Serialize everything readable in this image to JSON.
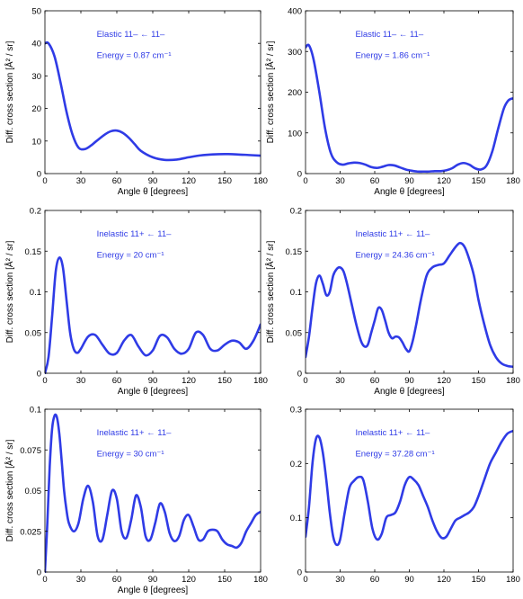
{
  "colors": {
    "line": "#2f3be6",
    "text": "#000000",
    "annotation": "#2f3be6"
  },
  "chart_data": [
    {
      "type": "line",
      "xlabel": "Angle θ [degrees]",
      "ylabel": "Diff. cross section [Å² / sr]",
      "xlim": [
        0,
        180
      ],
      "ylim": [
        0,
        50
      ],
      "xticks": [
        0,
        30,
        60,
        90,
        120,
        150,
        180
      ],
      "yticks": [
        {
          "v": 0,
          "t": "0"
        },
        {
          "v": 10,
          "t": "10"
        },
        {
          "v": 20,
          "t": "20"
        },
        {
          "v": 30,
          "t": "30"
        },
        {
          "v": 40,
          "t": "40"
        },
        {
          "v": 50,
          "t": "50"
        }
      ],
      "annotation_line1": "Elastic 11– ← 11–",
      "annotation_line2": "Energy = 0.87 cm⁻¹",
      "series": [
        {
          "x": [
            0,
            3,
            8,
            13,
            18,
            23,
            28,
            33,
            38,
            43,
            50,
            55,
            60,
            65,
            70,
            75,
            80,
            90,
            100,
            110,
            120,
            130,
            140,
            150,
            160,
            170,
            180
          ],
          "y": [
            40,
            40,
            36,
            28,
            19,
            12,
            8,
            7.5,
            8.5,
            10,
            12,
            13,
            13.2,
            12.5,
            11,
            9,
            7,
            5,
            4.2,
            4.3,
            5,
            5.6,
            5.9,
            6,
            5.9,
            5.7,
            5.5
          ]
        }
      ]
    },
    {
      "type": "line",
      "xlabel": "Angle θ [degrees]",
      "ylabel": "Diff. cross section [Å² / sr]",
      "xlim": [
        0,
        180
      ],
      "ylim": [
        0,
        400
      ],
      "xticks": [
        0,
        30,
        60,
        90,
        120,
        150,
        180
      ],
      "yticks": [
        {
          "v": 0,
          "t": "0"
        },
        {
          "v": 100,
          "t": "100"
        },
        {
          "v": 200,
          "t": "200"
        },
        {
          "v": 300,
          "t": "300"
        },
        {
          "v": 400,
          "t": "400"
        }
      ],
      "annotation_line1": "Elastic 11– ← 11–",
      "annotation_line2": "Energy = 1.86 cm⁻¹",
      "series": [
        {
          "x": [
            0,
            3,
            7,
            12,
            17,
            22,
            27,
            32,
            37,
            42,
            47,
            52,
            57,
            62,
            67,
            72,
            77,
            82,
            87,
            92,
            97,
            102,
            107,
            112,
            117,
            122,
            127,
            132,
            137,
            142,
            147,
            152,
            157,
            162,
            167,
            172,
            176,
            180
          ],
          "y": [
            310,
            315,
            280,
            200,
            110,
            50,
            28,
            22,
            25,
            27,
            26,
            22,
            16,
            14,
            17,
            21,
            20,
            15,
            10,
            7,
            5,
            5,
            5,
            6,
            6,
            8,
            13,
            22,
            26,
            22,
            13,
            10,
            20,
            55,
            110,
            160,
            180,
            185
          ]
        }
      ]
    },
    {
      "type": "line",
      "xlabel": "Angle θ [degrees]",
      "ylabel": "Diff. cross section [Å² / sr]",
      "xlim": [
        0,
        180
      ],
      "ylim": [
        0,
        0.2
      ],
      "xticks": [
        0,
        30,
        60,
        90,
        120,
        150,
        180
      ],
      "yticks": [
        {
          "v": 0,
          "t": "0"
        },
        {
          "v": 0.05,
          "t": "0.05"
        },
        {
          "v": 0.1,
          "t": "0.1"
        },
        {
          "v": 0.15,
          "t": "0.15"
        },
        {
          "v": 0.2,
          "t": "0.2"
        }
      ],
      "annotation_line1": "Inelastic 11+ ← 11–",
      "annotation_line2": "Energy = 20 cm⁻¹",
      "series": [
        {
          "x": [
            0,
            3,
            6,
            9,
            12,
            15,
            18,
            21,
            24,
            27,
            30,
            36,
            42,
            48,
            54,
            60,
            66,
            72,
            78,
            84,
            90,
            96,
            102,
            108,
            114,
            120,
            126,
            132,
            138,
            144,
            150,
            156,
            162,
            168,
            174,
            180
          ],
          "y": [
            0,
            0.02,
            0.07,
            0.125,
            0.142,
            0.13,
            0.09,
            0.05,
            0.03,
            0.025,
            0.03,
            0.045,
            0.047,
            0.035,
            0.024,
            0.025,
            0.04,
            0.047,
            0.033,
            0.022,
            0.028,
            0.046,
            0.044,
            0.03,
            0.024,
            0.03,
            0.05,
            0.047,
            0.03,
            0.028,
            0.035,
            0.04,
            0.038,
            0.03,
            0.04,
            0.06
          ]
        }
      ]
    },
    {
      "type": "line",
      "xlabel": "Angle θ [degrees]",
      "ylabel": "Diff. cross section [Å² / sr]",
      "xlim": [
        0,
        180
      ],
      "ylim": [
        0,
        0.2
      ],
      "xticks": [
        0,
        30,
        60,
        90,
        120,
        150,
        180
      ],
      "yticks": [
        {
          "v": 0,
          "t": "0"
        },
        {
          "v": 0.05,
          "t": "0.05"
        },
        {
          "v": 0.1,
          "t": "0.1"
        },
        {
          "v": 0.15,
          "t": "0.15"
        },
        {
          "v": 0.2,
          "t": "0.2"
        }
      ],
      "annotation_line1": "Inelastic 11+ ← 11–",
      "annotation_line2": "Energy = 24.36 cm⁻¹",
      "series": [
        {
          "x": [
            0,
            3,
            6,
            9,
            12,
            15,
            18,
            21,
            24,
            27,
            30,
            33,
            36,
            40,
            44,
            48,
            51,
            54,
            57,
            60,
            63,
            66,
            69,
            72,
            75,
            78,
            81,
            84,
            87,
            90,
            93,
            96,
            100,
            105,
            110,
            115,
            120,
            125,
            130,
            134,
            138,
            142,
            146,
            150,
            155,
            160,
            165,
            170,
            175,
            180
          ],
          "y": [
            0.02,
            0.045,
            0.08,
            0.11,
            0.12,
            0.11,
            0.096,
            0.1,
            0.12,
            0.128,
            0.13,
            0.125,
            0.11,
            0.085,
            0.06,
            0.04,
            0.033,
            0.035,
            0.05,
            0.065,
            0.08,
            0.078,
            0.065,
            0.05,
            0.043,
            0.045,
            0.044,
            0.038,
            0.03,
            0.027,
            0.04,
            0.06,
            0.09,
            0.12,
            0.13,
            0.133,
            0.135,
            0.145,
            0.155,
            0.16,
            0.155,
            0.14,
            0.12,
            0.09,
            0.06,
            0.035,
            0.02,
            0.012,
            0.009,
            0.008
          ]
        }
      ]
    },
    {
      "type": "line",
      "xlabel": "Angle θ [degrees]",
      "ylabel": "Diff. cross section [Å² / sr]",
      "xlim": [
        0,
        180
      ],
      "ylim": [
        0,
        0.1
      ],
      "xticks": [
        0,
        30,
        60,
        90,
        120,
        150,
        180
      ],
      "yticks": [
        {
          "v": 0,
          "t": "0"
        },
        {
          "v": 0.025,
          "t": "0.025"
        },
        {
          "v": 0.05,
          "t": "0.05"
        },
        {
          "v": 0.075,
          "t": "0.075"
        },
        {
          "v": 0.1,
          "t": "0.1"
        }
      ],
      "annotation_line1": "Inelastic 11+ ← 11–",
      "annotation_line2": "Energy = 30 cm⁻¹",
      "series": [
        {
          "x": [
            0,
            2,
            4,
            6,
            8,
            10,
            12,
            14,
            16,
            18,
            20,
            24,
            28,
            32,
            36,
            40,
            44,
            48,
            52,
            56,
            60,
            64,
            68,
            72,
            76,
            80,
            84,
            88,
            92,
            96,
            100,
            104,
            108,
            112,
            116,
            120,
            124,
            128,
            132,
            136,
            140,
            144,
            148,
            152,
            156,
            160,
            164,
            168,
            172,
            176,
            180
          ],
          "y": [
            0,
            0.03,
            0.065,
            0.088,
            0.096,
            0.095,
            0.085,
            0.068,
            0.05,
            0.038,
            0.03,
            0.025,
            0.03,
            0.045,
            0.053,
            0.043,
            0.022,
            0.02,
            0.035,
            0.05,
            0.045,
            0.025,
            0.021,
            0.032,
            0.047,
            0.04,
            0.022,
            0.02,
            0.03,
            0.042,
            0.037,
            0.024,
            0.019,
            0.022,
            0.032,
            0.035,
            0.028,
            0.02,
            0.02,
            0.025,
            0.026,
            0.025,
            0.02,
            0.017,
            0.016,
            0.015,
            0.018,
            0.025,
            0.03,
            0.035,
            0.037
          ]
        }
      ]
    },
    {
      "type": "line",
      "xlabel": "",
      "ylabel": "",
      "xlim": [
        0,
        180
      ],
      "ylim": [
        0,
        0.3
      ],
      "xticks": [
        0,
        30,
        60,
        90,
        120,
        150,
        180
      ],
      "yticks": [
        {
          "v": 0,
          "t": "0"
        },
        {
          "v": 0.1,
          "t": "0.1"
        },
        {
          "v": 0.2,
          "t": "0.2"
        },
        {
          "v": 0.3,
          "t": "0.3"
        }
      ],
      "annotation_line1": "Inelastic 11+ ← 11–",
      "annotation_line2": "Energy = 37.28 cm⁻¹",
      "series": [
        {
          "x": [
            0,
            3,
            6,
            9,
            12,
            15,
            18,
            21,
            24,
            27,
            30,
            34,
            38,
            42,
            46,
            50,
            54,
            58,
            62,
            66,
            70,
            74,
            78,
            82,
            86,
            90,
            94,
            98,
            102,
            106,
            110,
            114,
            118,
            122,
            126,
            130,
            134,
            138,
            142,
            146,
            150,
            155,
            160,
            165,
            170,
            175,
            180
          ],
          "y": [
            0.065,
            0.12,
            0.2,
            0.245,
            0.248,
            0.22,
            0.17,
            0.11,
            0.065,
            0.05,
            0.06,
            0.11,
            0.155,
            0.168,
            0.175,
            0.17,
            0.13,
            0.08,
            0.06,
            0.07,
            0.1,
            0.105,
            0.11,
            0.13,
            0.16,
            0.175,
            0.17,
            0.16,
            0.14,
            0.12,
            0.095,
            0.075,
            0.063,
            0.065,
            0.08,
            0.095,
            0.1,
            0.105,
            0.11,
            0.12,
            0.14,
            0.17,
            0.2,
            0.22,
            0.24,
            0.255,
            0.26
          ]
        }
      ]
    }
  ]
}
